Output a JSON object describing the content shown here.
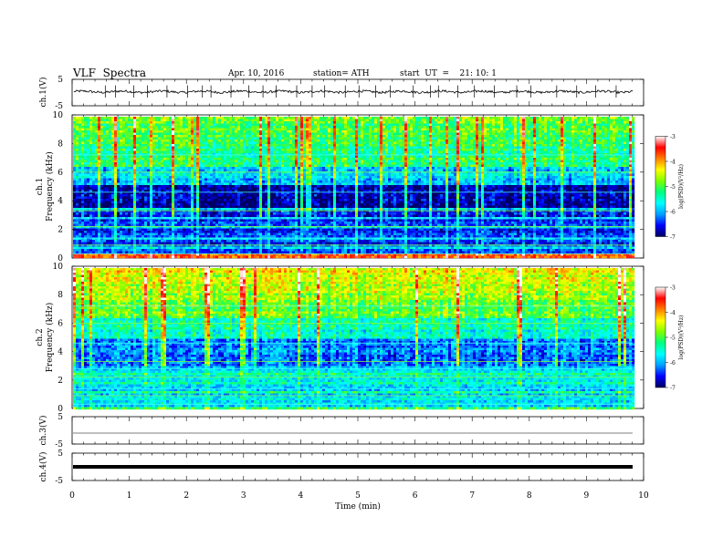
{
  "header": {
    "title": "VLF  Spectra",
    "date": "Apr. 10, 2016",
    "station": "station= ATH",
    "start": "start  UT  =    21: 10: 1"
  },
  "chart_data": [
    {
      "type": "line",
      "panel": "ch1-waveform",
      "ylabel": "ch.1(V)",
      "yticks": [
        "5",
        "-5"
      ],
      "ylim": [
        -5,
        5
      ],
      "xlim": [
        0,
        10
      ],
      "baseline": 0.3,
      "spike_minutes": [
        0.58,
        0.76,
        1.08,
        1.32,
        1.66,
        2.02,
        2.28,
        2.43,
        2.78,
        3.09,
        3.34,
        3.57,
        3.93,
        4.2,
        4.42,
        4.78,
        5.02,
        5.31,
        5.57,
        5.97,
        6.27,
        6.41,
        6.75,
        7.04,
        7.39,
        7.78,
        8.03,
        8.48,
        8.83,
        9.16,
        9.52
      ]
    },
    {
      "type": "heatmap",
      "panel": "ch1-spectrogram",
      "ylabel": "ch.1",
      "ylabel2": "Frequency  (kHz)",
      "yticks": [
        "10",
        "8",
        "6",
        "4",
        "2",
        "0"
      ],
      "ylim": [
        0,
        10
      ],
      "xlim": [
        0,
        9.8
      ],
      "colorbar": {
        "label": "log(PSD)(V²/Hz)",
        "ticks": [
          "-3",
          "-4",
          "-5",
          "-6",
          "-7"
        ],
        "range": [
          -7,
          -3
        ]
      }
    },
    {
      "type": "heatmap",
      "panel": "ch2-spectrogram",
      "ylabel": "ch.2",
      "ylabel2": "Frequency  (kHz)",
      "yticks": [
        "10",
        "8",
        "6",
        "4",
        "2",
        "0"
      ],
      "ylim": [
        0,
        10
      ],
      "xlim": [
        0,
        9.8
      ],
      "colorbar": {
        "label": "log(PSD)(V²/Hz)",
        "ticks": [
          "-3",
          "-4",
          "-5",
          "-6",
          "-7"
        ],
        "range": [
          -7,
          -3
        ]
      }
    },
    {
      "type": "line",
      "panel": "ch3-waveform",
      "ylabel": "ch.3(V)",
      "yticks": [
        "5",
        "-5"
      ],
      "ylim": [
        -5,
        5
      ],
      "xlim": [
        0,
        10
      ],
      "baseline": -1
    },
    {
      "type": "line",
      "panel": "ch4-waveform",
      "ylabel": "ch.4(V)",
      "yticks": [
        "5",
        "-5"
      ],
      "ylim": [
        -5,
        5
      ],
      "xlim": [
        0,
        10
      ],
      "baseline": 0
    }
  ],
  "x_axis": {
    "label": "Time  (min)",
    "ticks": [
      "0",
      "1",
      "2",
      "3",
      "4",
      "5",
      "6",
      "7",
      "8",
      "9",
      "10"
    ],
    "xlim": [
      0,
      10
    ]
  },
  "colors": {
    "frame": "#000000",
    "background": "#ffffff",
    "spectrogram_scale": [
      "#000060",
      "#0000ff",
      "#00a0ff",
      "#00ffff",
      "#00ff80",
      "#80ff00",
      "#ffff00",
      "#ff8000",
      "#ff0000",
      "#ffffff"
    ]
  }
}
